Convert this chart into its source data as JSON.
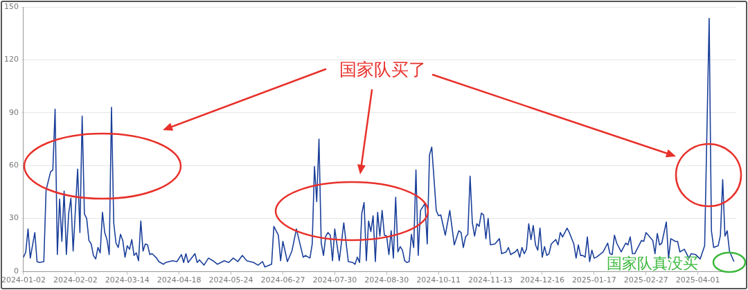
{
  "chart_data": {
    "type": "line",
    "categories": [
      "2024-01-02",
      null,
      null,
      null,
      null,
      null,
      null,
      null,
      null,
      null,
      null,
      null,
      null,
      null,
      null,
      null,
      null,
      null,
      null,
      null,
      null,
      null,
      null,
      "2024-02-02",
      null,
      null,
      null,
      null,
      null,
      null,
      null,
      null,
      null,
      null,
      null,
      null,
      null,
      null,
      null,
      null,
      null,
      null,
      null,
      null,
      null,
      null,
      "2024-03-14",
      null,
      null,
      null,
      null,
      null,
      null,
      null,
      null,
      null,
      null,
      null,
      null,
      null,
      null,
      null,
      null,
      null,
      null,
      null,
      null,
      null,
      null,
      "2024-04-18",
      null,
      null,
      null,
      null,
      null,
      null,
      null,
      null,
      null,
      null,
      null,
      null,
      null,
      null,
      null,
      null,
      null,
      null,
      null,
      null,
      null,
      null,
      "2024-05-24",
      null,
      null,
      null,
      null,
      null,
      null,
      null,
      null,
      null,
      null,
      null,
      null,
      null,
      null,
      null,
      null,
      null,
      null,
      null,
      null,
      null,
      null,
      "2024-06-27",
      null,
      null,
      null,
      null,
      null,
      null,
      null,
      null,
      null,
      null,
      null,
      null,
      null,
      null,
      null,
      null,
      null,
      null,
      null,
      null,
      null,
      null,
      "2024-07-30",
      null,
      null,
      null,
      null,
      null,
      null,
      null,
      null,
      null,
      null,
      null,
      null,
      null,
      null,
      null,
      null,
      null,
      null,
      null,
      null,
      null,
      null,
      "2024-08-30",
      null,
      null,
      null,
      null,
      null,
      null,
      null,
      null,
      null,
      null,
      null,
      null,
      null,
      null,
      null,
      null,
      null,
      null,
      null,
      null,
      null,
      null,
      "2024-10-11",
      null,
      null,
      null,
      null,
      null,
      null,
      null,
      null,
      null,
      null,
      null,
      null,
      null,
      null,
      null,
      null,
      null,
      null,
      null,
      null,
      null,
      null,
      "2024-11-13",
      null,
      null,
      null,
      null,
      null,
      null,
      null,
      null,
      null,
      null,
      null,
      null,
      null,
      null,
      null,
      null,
      null,
      null,
      null,
      null,
      null,
      null,
      "2024-12-16",
      null,
      null,
      null,
      null,
      null,
      null,
      null,
      null,
      null,
      null,
      null,
      null,
      null,
      null,
      null,
      null,
      null,
      null,
      null,
      null,
      null,
      null,
      "2025-01-17",
      null,
      null,
      null,
      null,
      null,
      null,
      null,
      null,
      null,
      null,
      null,
      null,
      null,
      null,
      null,
      null,
      null,
      null,
      null,
      null,
      null,
      null,
      "2025-02-27",
      null,
      null,
      null,
      null,
      null,
      null,
      null,
      null,
      null,
      null,
      null,
      null,
      null,
      null,
      null,
      null,
      null,
      null,
      null,
      null,
      null,
      null,
      "2025-04-01",
      null,
      null,
      null,
      null,
      null,
      null,
      null,
      null,
      null,
      null,
      null,
      null,
      null,
      null,
      null,
      null,
      null
    ],
    "ylim": [
      0,
      150
    ],
    "yticks": [
      0,
      30,
      60,
      90,
      120,
      150
    ],
    "grid": "y",
    "legend": false,
    "marker": "none",
    "line_style": "solid",
    "annotations": [
      "国家队买了",
      "国家队真没买"
    ],
    "series": [
      {
        "color": "#1a3f9a",
        "values": [
          8,
          11,
          24,
          7.5,
          null,
          22,
          5.5,
          5,
          null,
          5.5,
          46,
          null,
          56.5,
          57.5,
          92,
          9.5,
          41,
          17,
          45.5,
          9.5,
          32.5,
          41.5,
          11.5,
          null,
          58,
          22,
          88,
          32.5,
          30,
          17.5,
          15.5,
          9,
          7,
          13.5,
          10.5,
          33.5,
          22,
          18,
          9.5,
          93,
          27.5,
          16,
          13.5,
          21,
          17.5,
          8,
          14.5,
          12.5,
          18,
          9,
          10.5,
          6,
          28.5,
          11.5,
          15.5,
          15,
          9.5,
          10,
          null,
          7.5,
          5.5,
          null,
          4,
          5,
          null,
          null,
          6,
          null,
          5.5,
          null,
          9.5,
          5,
          10,
          5,
          null,
          null,
          10,
          5,
          6.5,
          null,
          3.5,
          null,
          7.5,
          null,
          6,
          null,
          4,
          null,
          null,
          6,
          null,
          5,
          null,
          7.5,
          null,
          5.5,
          null,
          9,
          null,
          6,
          null,
          null,
          5,
          null,
          3.5,
          null,
          5.5,
          2.5,
          null,
          null,
          4,
          25.5,
          null,
          20.5,
          6,
          17,
          null,
          5.5,
          null,
          11.5,
          null,
          24,
          null,
          null,
          8,
          9,
          null,
          7.5,
          15.5,
          59.5,
          39.5,
          75,
          16,
          9,
          20,
          22,
          20.5,
          6,
          24,
          null,
          6,
          null,
          27.5,
          null,
          5.5,
          null,
          5,
          4,
          8,
          5,
          33,
          39,
          6,
          28.5,
          22.5,
          31.5,
          5.5,
          33.5,
          20,
          34.5,
          20.5,
          20,
          9.5,
          23,
          7.5,
          42,
          11,
          14,
          12,
          6,
          5,
          5.5,
          21,
          13.5,
          57.5,
          9,
          34.5,
          null,
          38.5,
          15.5,
          66,
          70.5,
          null,
          34.5,
          31.5,
          32,
          null,
          20.5,
          null,
          34.5,
          null,
          15,
          null,
          23,
          22,
          13.5,
          19.5,
          21,
          54,
          27.5,
          20,
          27,
          25.5,
          33,
          32,
          18.5,
          30,
          15,
          null,
          15.5,
          null,
          18.5,
          10,
          null,
          11,
          13.5,
          9.5,
          null,
          11,
          12.5,
          8,
          13.5,
          10,
          12.5,
          27,
          18,
          26,
          15,
          12,
          24.5,
          8,
          14,
          9,
          10,
          15.5,
          null,
          18,
          15,
          22,
          19.5,
          null,
          24.5,
          22,
          null,
          15.5,
          7.5,
          15,
          9,
          9,
          8,
          19.5,
          5.5,
          12,
          7.5,
          8,
          9,
          null,
          11,
          null,
          16,
          10,
          9.5,
          20.5,
          16,
          null,
          11,
          null,
          16,
          15,
          19.5,
          10,
          10,
          null,
          null,
          17.5,
          17,
          22,
          20.5,
          null,
          17.5,
          10,
          21.5,
          15,
          16,
          null,
          28,
          7.5,
          18.5,
          null,
          17,
          17,
          11,
          null,
          12.5,
          null,
          7.5,
          10,
          null,
          9.5,
          null,
          7,
          null,
          14.5,
          null,
          143.5,
          23,
          13.5,
          null,
          14.5,
          20.5,
          52,
          20,
          23,
          11.5,
          null,
          5.5,
          null
        ]
      }
    ]
  }
}
